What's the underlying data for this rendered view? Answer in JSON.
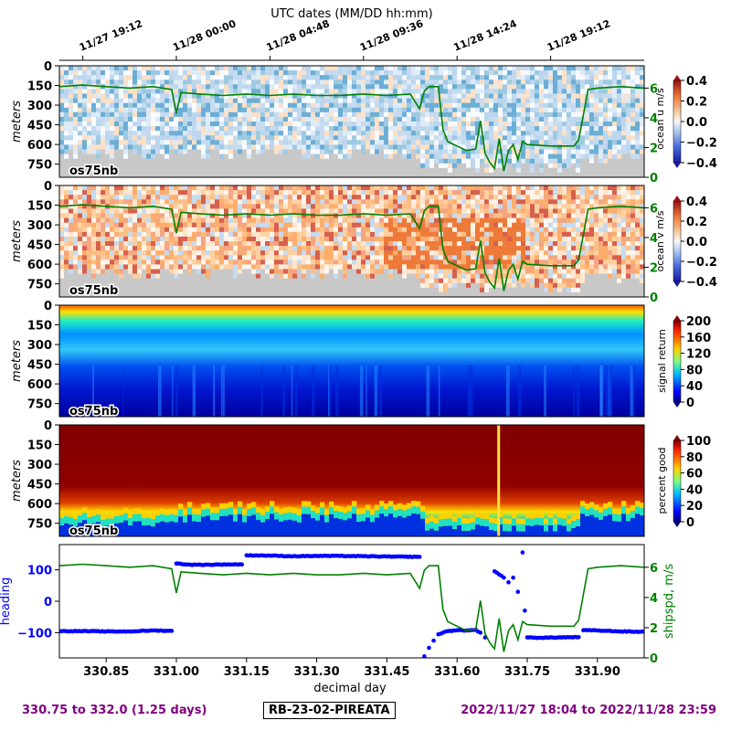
{
  "figure": {
    "top_axis_title": "UTC dates (MM/DD hh:mm)",
    "top_axis_ticks": [
      "11/27 19:12",
      "11/28 00:00",
      "11/28 04:48",
      "11/28 09:36",
      "11/28 14:24",
      "11/28 19:12"
    ],
    "bottom_xlabel": "decimal day",
    "footer_left": "330.75 to 332.0 (1.25 days)",
    "footer_center": "RB-23-02-PIREATA",
    "footer_right": "2022/11/27 18:04 to 2022/11/28 23:59",
    "colors": {
      "ship_speed": "#008000",
      "heading": "#0000ff",
      "footer": "#800080",
      "nodata": "#c8c8c8"
    }
  },
  "chart_data": [
    {
      "type": "heatmap",
      "panel": "ocean-u",
      "ylabel": "meters",
      "y_ticks": [
        "0",
        "150",
        "300",
        "450",
        "600",
        "750"
      ],
      "ylim": [
        850,
        0
      ],
      "xlim": [
        330.75,
        332.0
      ],
      "instrument_label": "os75nb",
      "colorbar": {
        "label": "ocean u m/s",
        "ticks": [
          "0.4",
          "0.2",
          "0.0",
          "−0.2",
          "−0.4"
        ],
        "range": [
          -0.4,
          0.4
        ],
        "colormap": "RdBu_r"
      },
      "overlay": {
        "name": "ship speed",
        "right_ticks": [
          "0",
          "2",
          "4",
          "6"
        ],
        "ylim": [
          0,
          7.5
        ]
      }
    },
    {
      "type": "heatmap",
      "panel": "ocean-v",
      "ylabel": "meters",
      "y_ticks": [
        "0",
        "150",
        "300",
        "450",
        "600",
        "750"
      ],
      "ylim": [
        850,
        0
      ],
      "xlim": [
        330.75,
        332.0
      ],
      "instrument_label": "os75nb",
      "colorbar": {
        "label": "ocean v m/s",
        "ticks": [
          "0.4",
          "0.2",
          "0.0",
          "−0.2",
          "−0.4"
        ],
        "range": [
          -0.4,
          0.4
        ],
        "colormap": "RdBu_r"
      },
      "overlay": {
        "name": "ship speed",
        "right_ticks": [
          "0",
          "2",
          "4",
          "6"
        ],
        "ylim": [
          0,
          7.5
        ]
      }
    },
    {
      "type": "heatmap",
      "panel": "signal-return",
      "ylabel": "meters",
      "y_ticks": [
        "0",
        "150",
        "300",
        "450",
        "600",
        "750"
      ],
      "ylim": [
        850,
        0
      ],
      "xlim": [
        330.75,
        332.0
      ],
      "instrument_label": "os75nb",
      "colorbar": {
        "label": "signal return",
        "ticks": [
          "200",
          "160",
          "120",
          "80",
          "40",
          "0"
        ],
        "range": [
          0,
          200
        ],
        "colormap": "jet"
      }
    },
    {
      "type": "heatmap",
      "panel": "percent-good",
      "ylabel": "meters",
      "y_ticks": [
        "0",
        "150",
        "300",
        "450",
        "600",
        "750"
      ],
      "ylim": [
        850,
        0
      ],
      "xlim": [
        330.75,
        332.0
      ],
      "instrument_label": "os75nb",
      "colorbar": {
        "label": "percent good",
        "ticks": [
          "100",
          "80",
          "60",
          "40",
          "20",
          "0"
        ],
        "range": [
          0,
          100
        ],
        "colormap": "jet"
      }
    },
    {
      "type": "scatter",
      "panel": "heading-speed",
      "xlabel": "decimal day",
      "x_ticks": [
        "330.85",
        "331.00",
        "331.15",
        "331.30",
        "331.45",
        "331.60",
        "331.75",
        "331.90"
      ],
      "xlim": [
        330.75,
        332.0
      ],
      "left_axis": {
        "label": "heading",
        "ticks": [
          "100",
          "0",
          "−100"
        ],
        "ylim": [
          -180,
          180
        ]
      },
      "right_axis": {
        "label": "shipspd, m/s",
        "ticks": [
          "0",
          "2",
          "4",
          "6"
        ],
        "ylim": [
          0,
          7.5
        ]
      },
      "series": [
        {
          "name": "heading",
          "points": [
            [
              330.75,
              -95
            ],
            [
              330.8,
              -95
            ],
            [
              330.85,
              -96
            ],
            [
              330.9,
              -96
            ],
            [
              330.95,
              -93
            ],
            [
              330.99,
              -94
            ],
            [
              331.0,
              120
            ],
            [
              331.03,
              116
            ],
            [
              331.07,
              116
            ],
            [
              331.11,
              117
            ],
            [
              331.14,
              117
            ],
            [
              331.15,
              146
            ],
            [
              331.2,
              145
            ],
            [
              331.25,
              143
            ],
            [
              331.3,
              144
            ],
            [
              331.35,
              144
            ],
            [
              331.4,
              143
            ],
            [
              331.45,
              142
            ],
            [
              331.52,
              141
            ],
            [
              331.53,
              -175
            ],
            [
              331.54,
              -148
            ],
            [
              331.55,
              -125
            ],
            [
              331.56,
              -105
            ],
            [
              331.58,
              -95
            ],
            [
              331.6,
              -92
            ],
            [
              331.62,
              -93
            ],
            [
              331.64,
              -91
            ],
            [
              331.65,
              -100
            ],
            [
              331.66,
              -115
            ],
            [
              331.68,
              95
            ],
            [
              331.69,
              85
            ],
            [
              331.7,
              75
            ],
            [
              331.71,
              60
            ],
            [
              331.72,
              75
            ],
            [
              331.73,
              30
            ],
            [
              331.74,
              155
            ],
            [
              331.745,
              -30
            ],
            [
              331.75,
              -115
            ],
            [
              331.78,
              -116
            ],
            [
              331.82,
              -115
            ],
            [
              331.86,
              -114
            ],
            [
              331.87,
              -92
            ],
            [
              331.9,
              -93
            ],
            [
              331.95,
              -96
            ],
            [
              332.0,
              -97
            ]
          ]
        },
        {
          "name": "ship speed",
          "points": [
            [
              330.75,
              6.1
            ],
            [
              330.8,
              6.2
            ],
            [
              330.85,
              6.1
            ],
            [
              330.9,
              6.0
            ],
            [
              330.95,
              6.1
            ],
            [
              330.99,
              5.9
            ],
            [
              331.0,
              4.3
            ],
            [
              331.01,
              5.7
            ],
            [
              331.05,
              5.6
            ],
            [
              331.1,
              5.5
            ],
            [
              331.15,
              5.6
            ],
            [
              331.2,
              5.5
            ],
            [
              331.25,
              5.6
            ],
            [
              331.3,
              5.5
            ],
            [
              331.35,
              5.5
            ],
            [
              331.4,
              5.6
            ],
            [
              331.45,
              5.5
            ],
            [
              331.5,
              5.6
            ],
            [
              331.52,
              4.6
            ],
            [
              331.53,
              5.8
            ],
            [
              331.54,
              6.1
            ],
            [
              331.56,
              6.1
            ],
            [
              331.57,
              3.2
            ],
            [
              331.58,
              2.4
            ],
            [
              331.6,
              2.1
            ],
            [
              331.62,
              1.8
            ],
            [
              331.64,
              1.9
            ],
            [
              331.65,
              3.8
            ],
            [
              331.66,
              1.6
            ],
            [
              331.67,
              1.0
            ],
            [
              331.68,
              0.6
            ],
            [
              331.69,
              2.6
            ],
            [
              331.7,
              0.4
            ],
            [
              331.71,
              1.8
            ],
            [
              331.72,
              2.2
            ],
            [
              331.73,
              1.2
            ],
            [
              331.74,
              2.4
            ],
            [
              331.75,
              2.2
            ],
            [
              331.8,
              2.1
            ],
            [
              331.85,
              2.1
            ],
            [
              331.86,
              2.5
            ],
            [
              331.88,
              5.9
            ],
            [
              331.9,
              6.0
            ],
            [
              331.95,
              6.1
            ],
            [
              332.0,
              6.0
            ]
          ]
        }
      ]
    }
  ]
}
